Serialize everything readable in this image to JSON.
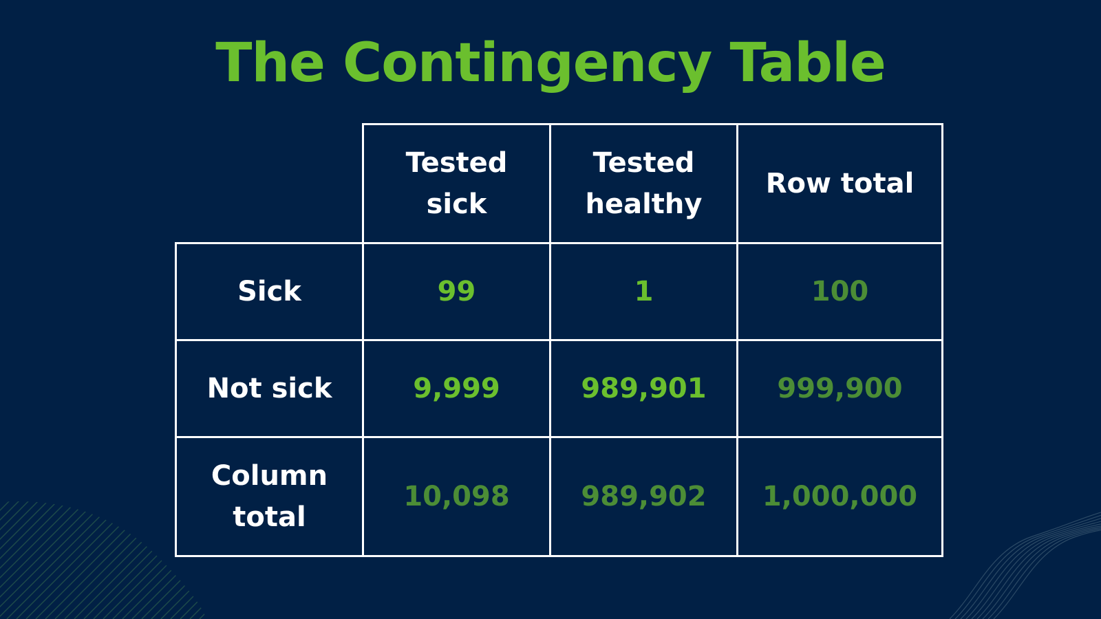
{
  "title": "The Contingency Table",
  "table": {
    "columns": [
      {
        "lines": [
          "Tested",
          "sick"
        ]
      },
      {
        "lines": [
          "Tested",
          "healthy"
        ]
      },
      {
        "lines": [
          "Row total"
        ]
      }
    ],
    "rows": [
      {
        "label_lines": [
          "Sick"
        ],
        "cells": [
          "99",
          "1"
        ],
        "total": "100"
      },
      {
        "label_lines": [
          "Not sick"
        ],
        "cells": [
          "9,999",
          "989,901"
        ],
        "total": "999,900"
      },
      {
        "label_lines": [
          "Column",
          "total"
        ],
        "cells": [
          "10,098",
          "989,902"
        ],
        "total": "1,000,000"
      }
    ]
  },
  "colors": {
    "background": "#012045",
    "title": "#6BBF2E",
    "value": "#6BBF2E",
    "total_value": "#4C8D36",
    "grid": "#FFFFFF",
    "header_text": "#FFFFFF"
  }
}
